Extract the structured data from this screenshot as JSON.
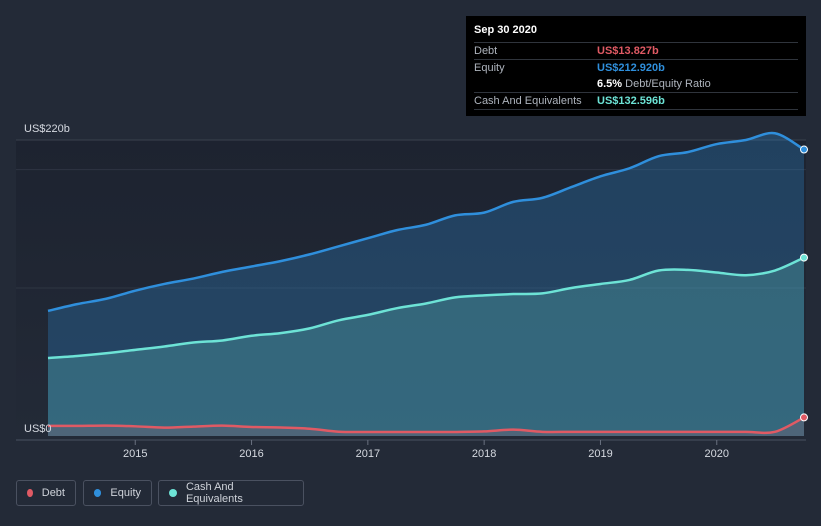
{
  "chart_data": {
    "type": "area",
    "y_unit_labels": {
      "top": "US$220b",
      "bottom": "US$0"
    },
    "ylim": [
      0,
      220
    ],
    "xlim": [
      2014.25,
      2020.75
    ],
    "x_ticks": [
      "2015",
      "2016",
      "2017",
      "2018",
      "2019",
      "2020"
    ],
    "series": [
      {
        "name": "Debt",
        "color": "#e05a64",
        "points": [
          [
            2014.25,
            7.5
          ],
          [
            2014.5,
            7.5
          ],
          [
            2014.75,
            7.7
          ],
          [
            2015.0,
            7.2
          ],
          [
            2015.25,
            6.2
          ],
          [
            2015.5,
            7.0
          ],
          [
            2015.75,
            7.7
          ],
          [
            2016.0,
            6.7
          ],
          [
            2016.25,
            6.3
          ],
          [
            2016.5,
            5.4
          ],
          [
            2016.75,
            3.2
          ],
          [
            2017.0,
            3.0
          ],
          [
            2017.25,
            3.0
          ],
          [
            2017.5,
            3.0
          ],
          [
            2017.75,
            3.0
          ],
          [
            2018.0,
            3.4
          ],
          [
            2018.25,
            4.7
          ],
          [
            2018.5,
            3.1
          ],
          [
            2018.75,
            3.1
          ],
          [
            2019.0,
            3.1
          ],
          [
            2019.25,
            3.1
          ],
          [
            2019.5,
            3.1
          ],
          [
            2019.75,
            3.1
          ],
          [
            2020.0,
            3.1
          ],
          [
            2020.25,
            3.1
          ],
          [
            2020.5,
            3.1
          ],
          [
            2020.75,
            13.8
          ]
        ]
      },
      {
        "name": "Equity",
        "color": "#2f8fdc",
        "points": [
          [
            2014.25,
            93
          ],
          [
            2014.5,
            98
          ],
          [
            2014.75,
            102
          ],
          [
            2015.0,
            108
          ],
          [
            2015.25,
            113
          ],
          [
            2015.5,
            117
          ],
          [
            2015.75,
            122
          ],
          [
            2016.0,
            126
          ],
          [
            2016.25,
            130
          ],
          [
            2016.5,
            135
          ],
          [
            2016.75,
            141
          ],
          [
            2017.0,
            147
          ],
          [
            2017.25,
            153
          ],
          [
            2017.5,
            157
          ],
          [
            2017.75,
            164
          ],
          [
            2018.0,
            166
          ],
          [
            2018.25,
            174
          ],
          [
            2018.5,
            177
          ],
          [
            2018.75,
            185
          ],
          [
            2019.0,
            193
          ],
          [
            2019.25,
            199
          ],
          [
            2019.5,
            208
          ],
          [
            2019.75,
            211
          ],
          [
            2020.0,
            217
          ],
          [
            2020.25,
            220
          ],
          [
            2020.5,
            225
          ],
          [
            2020.75,
            212.9
          ]
        ]
      },
      {
        "name": "Cash And Equivalents",
        "color": "#6de3d6",
        "points": [
          [
            2014.25,
            58
          ],
          [
            2014.5,
            59.5
          ],
          [
            2014.75,
            61.5
          ],
          [
            2015.0,
            64
          ],
          [
            2015.25,
            66.5
          ],
          [
            2015.5,
            69.5
          ],
          [
            2015.75,
            71
          ],
          [
            2016.0,
            74.5
          ],
          [
            2016.25,
            76.5
          ],
          [
            2016.5,
            80
          ],
          [
            2016.75,
            86
          ],
          [
            2017.0,
            90
          ],
          [
            2017.25,
            95
          ],
          [
            2017.5,
            98.5
          ],
          [
            2017.75,
            103
          ],
          [
            2018.0,
            104.5
          ],
          [
            2018.25,
            105.5
          ],
          [
            2018.5,
            106
          ],
          [
            2018.75,
            110
          ],
          [
            2019.0,
            113
          ],
          [
            2019.25,
            116
          ],
          [
            2019.5,
            123
          ],
          [
            2019.75,
            123.5
          ],
          [
            2020.0,
            121.5
          ],
          [
            2020.25,
            119.5
          ],
          [
            2020.5,
            123
          ],
          [
            2020.75,
            132.6
          ]
        ]
      }
    ],
    "grid": true,
    "legend_position": "bottom-left"
  },
  "tooltip": {
    "date": "Sep 30 2020",
    "rows": [
      {
        "key": "Debt",
        "value": "US$13.827b",
        "color": "#e05a64"
      },
      {
        "key": "Equity",
        "value": "US$212.920b",
        "color": "#2f8fdc"
      },
      {
        "key": "",
        "value": "6.5%",
        "suffix": "Debt/Equity Ratio",
        "color": "#ffffff"
      },
      {
        "key": "Cash And Equivalents",
        "value": "US$132.596b",
        "color": "#6de3d6"
      }
    ]
  },
  "legend": [
    {
      "label": "Debt",
      "color": "#e05a64"
    },
    {
      "label": "Equity",
      "color": "#2f8fdc"
    },
    {
      "label": "Cash And Equivalents",
      "color": "#6de3d6"
    }
  ]
}
